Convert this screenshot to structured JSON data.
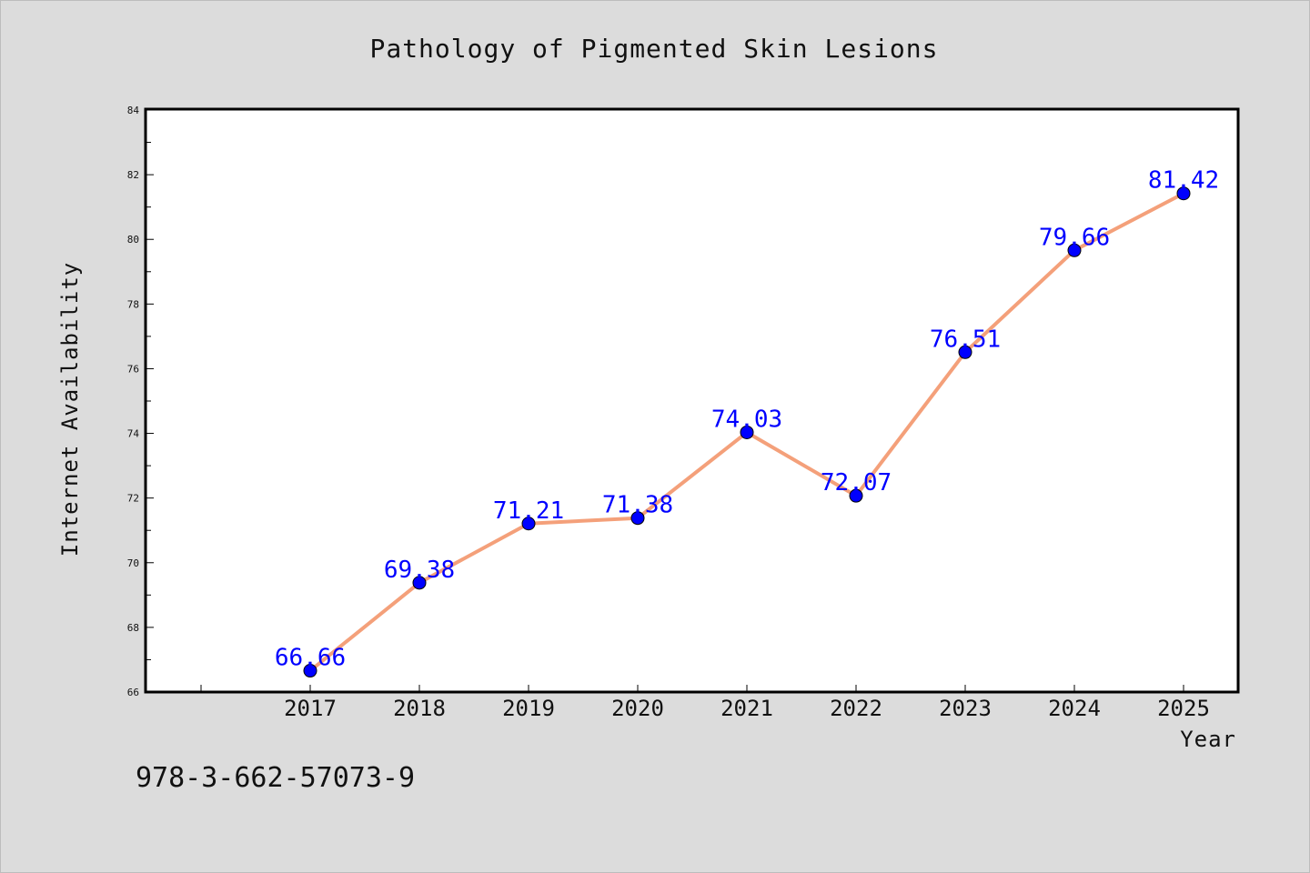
{
  "chart_data": {
    "type": "line",
    "title": "Pathology of Pigmented Skin Lesions",
    "xlabel": "Year",
    "ylabel": "Internet Availability",
    "categories": [
      "2017",
      "2018",
      "2019",
      "2020",
      "2021",
      "2022",
      "2023",
      "2024",
      "2025"
    ],
    "series": [
      {
        "values": [
          66.66,
          69.38,
          71.21,
          71.38,
          74.03,
          72.07,
          76.51,
          79.66,
          81.42
        ],
        "labels": [
          "66.66",
          "69.38",
          "71.21",
          "71.38",
          "74.03",
          "72.07",
          "76.51",
          "79.66",
          "81.42"
        ],
        "line_color": "#f4a07a",
        "marker_color": "#0000ff"
      }
    ],
    "ylim": [
      66,
      84
    ],
    "yticks": [
      "66",
      "68",
      "70",
      "72",
      "74",
      "76",
      "78",
      "80",
      "82",
      "84"
    ],
    "grid": false,
    "legend": "none"
  },
  "footer": {
    "isbn": "978-3-662-57073-9"
  }
}
